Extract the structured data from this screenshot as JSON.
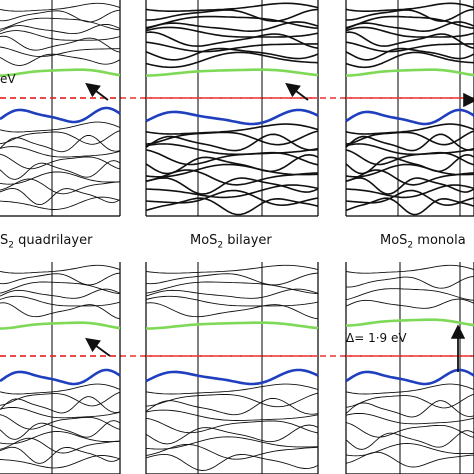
{
  "figure": {
    "panels": [
      {
        "id": "top-left",
        "caption": "",
        "gap_label": "eV",
        "gap_label_prefix": ""
      },
      {
        "id": "top-middle",
        "caption": "",
        "gap_label": "",
        "gap_label_prefix": ""
      },
      {
        "id": "top-right",
        "caption": "",
        "gap_label": "",
        "gap_label_prefix": ""
      },
      {
        "id": "bottom-left",
        "caption_main": "S",
        "caption_sub": "2",
        "caption_rest": " quadrilayer"
      },
      {
        "id": "bottom-middle",
        "caption_main": "MoS",
        "caption_sub": "2",
        "caption_rest": " bilayer"
      },
      {
        "id": "bottom-right",
        "caption_main": "MoS",
        "caption_sub": "2",
        "caption_rest": " monola",
        "gap_label": "Δ= 1·9 eV"
      }
    ],
    "colors": {
      "conduction_min": "#7ed957",
      "valence_max": "#1f3fbf",
      "fermi_line": "#e8312f",
      "bands": "#111111",
      "arrow": "#111111"
    }
  }
}
